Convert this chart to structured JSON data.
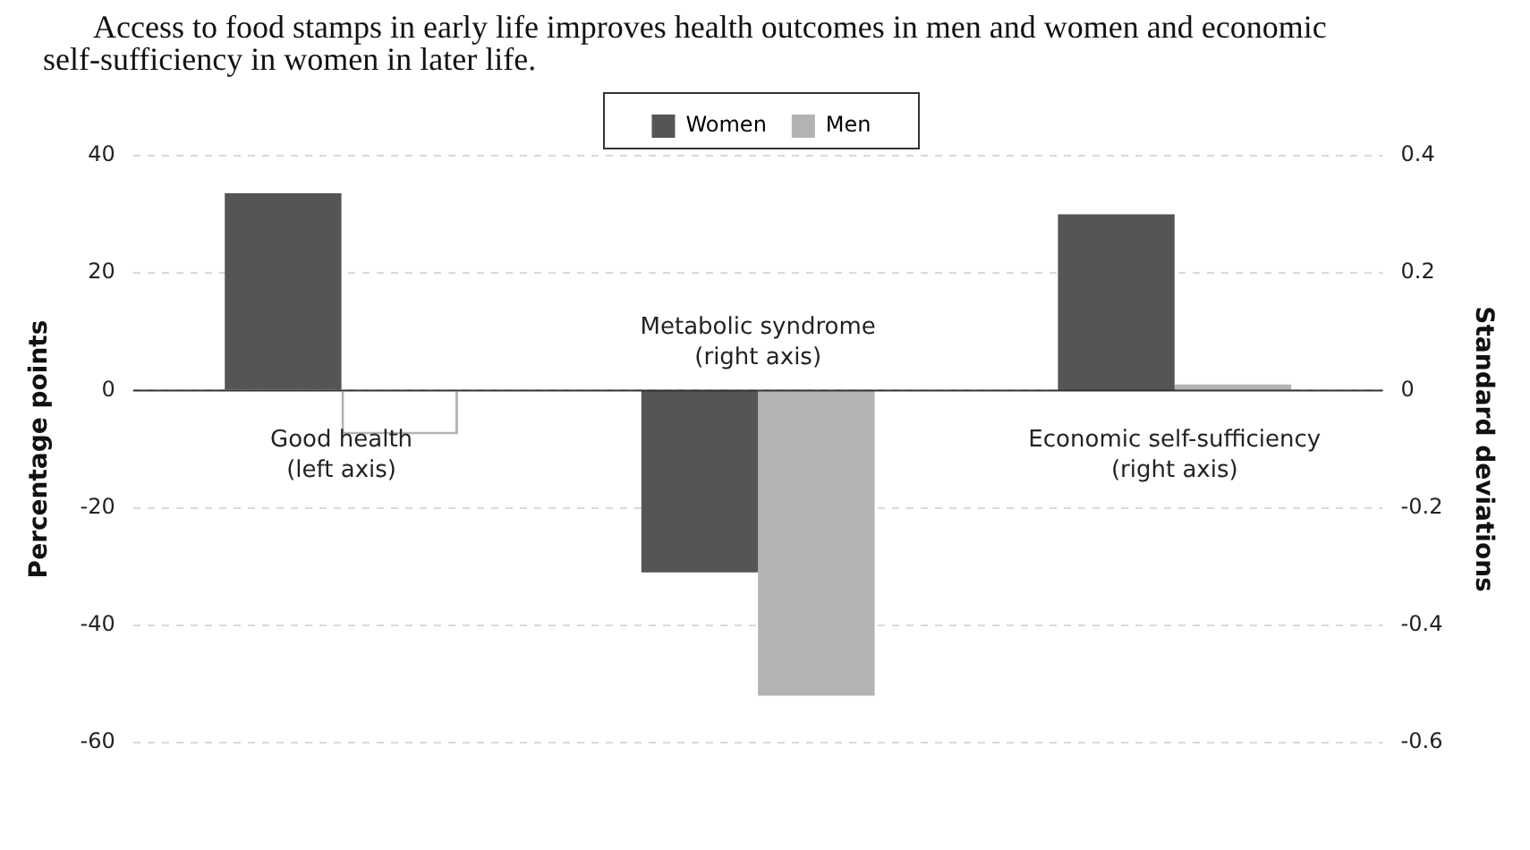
{
  "chart_data": {
    "type": "bar",
    "title": "Access to food stamps in early life improves health outcomes in men and women and economic self-sufficiency in women in later life.",
    "categories": [
      "Good health\n(left axis)",
      "Metabolic syndrome\n(right axis)",
      "Economic self-sufficiency\n(right axis)"
    ],
    "ylabel": "Percentage points",
    "y2label": "Standard deviations",
    "series": [
      {
        "color": "#555555",
        "axis": "y",
        "values": [
          33.6,
          null,
          null
        ]
      },
      {
        "color": "#b3b3b3",
        "colors": [
          "#ffffff",
          null,
          null
        ],
        "axis": "y",
        "values": [
          -7.5,
          null,
          null
        ]
      },
      {
        "name": "Women",
        "color": "#555555",
        "axis": "y2",
        "values": [
          null,
          -0.31,
          0.3
        ]
      },
      {
        "name": "Men",
        "color": "#b3b3b3",
        "axis": "y2",
        "values": [
          null,
          -0.52,
          0.01
        ]
      }
    ],
    "ylim": [
      -60,
      40
    ],
    "yticks": [
      -60,
      -40,
      -20,
      0,
      20,
      40
    ],
    "y2lim": [
      -0.6,
      0.4
    ],
    "y2ticks": [
      -0.6,
      -0.4,
      -0.2,
      0,
      0.2,
      0.4
    ],
    "grid": "y",
    "legend": "top"
  }
}
